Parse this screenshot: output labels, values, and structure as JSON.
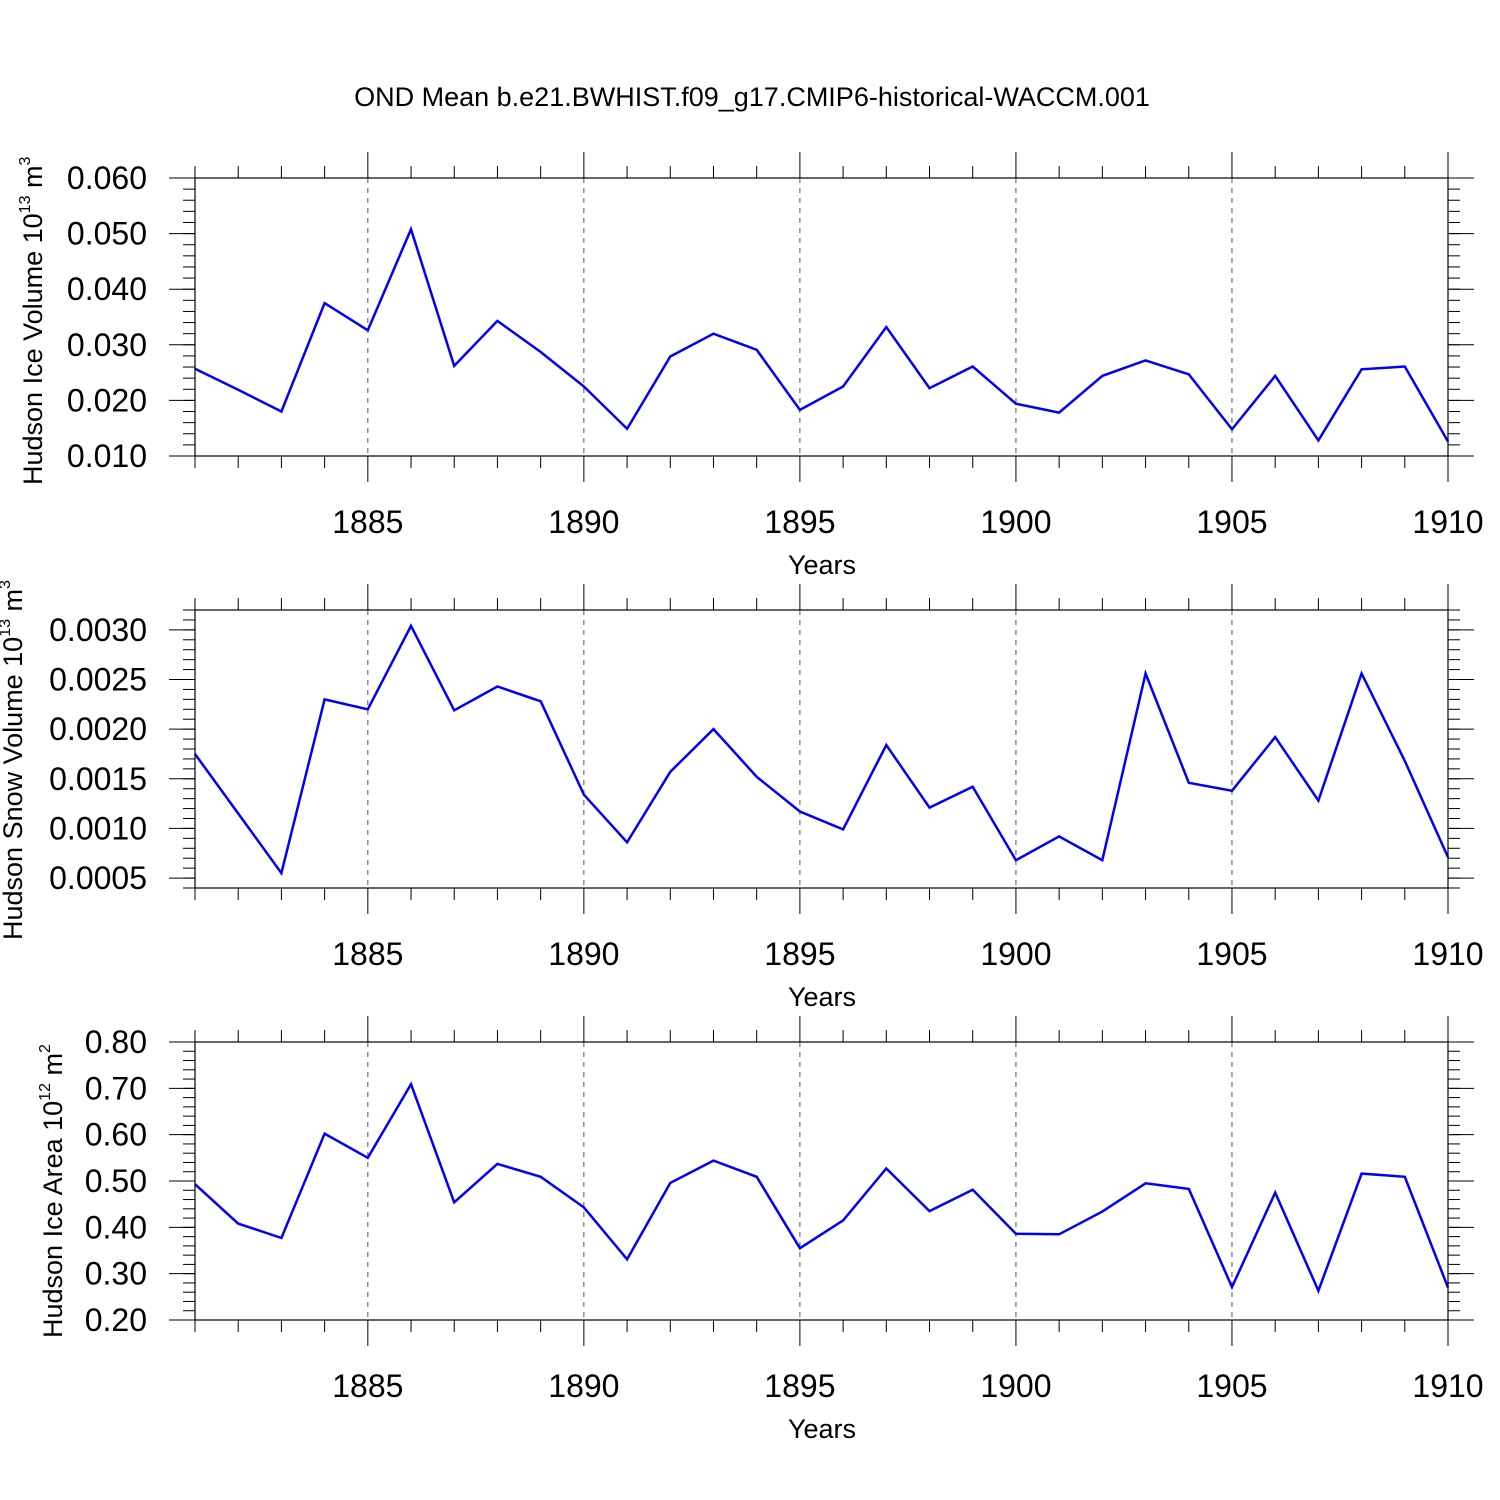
{
  "figure_title": "OND Mean b.e21.BWHIST.f09_g17.CMIP6-historical-WACCM.001",
  "colors": {
    "line": "#0000ff",
    "axes": "#000000",
    "grid": "#555555",
    "background": "#ffffff"
  },
  "chart_data": [
    {
      "type": "line",
      "xlabel": "Years",
      "ylabel": {
        "text": "Hudson Ice Volume 10",
        "sup": "13",
        "unit": " m",
        "unit_sup": "3"
      },
      "xlim": [
        1881,
        1910
      ],
      "ylim": [
        0.01,
        0.06
      ],
      "x_ticks": [
        1885,
        1890,
        1895,
        1900,
        1905,
        1910
      ],
      "y_ticks": [
        "0.010",
        "0.020",
        "0.030",
        "0.040",
        "0.050",
        "0.060"
      ],
      "grid": "vertical dashed at major x ticks",
      "x": [
        1881,
        1882,
        1883,
        1884,
        1885,
        1886,
        1887,
        1888,
        1889,
        1890,
        1891,
        1892,
        1893,
        1894,
        1895,
        1896,
        1897,
        1898,
        1899,
        1900,
        1901,
        1902,
        1903,
        1904,
        1905,
        1906,
        1907,
        1908,
        1909,
        1910
      ],
      "series": [
        {
          "values": [
            0.0257,
            0.0219,
            0.018,
            0.0375,
            0.0326,
            0.0508,
            0.0262,
            0.0343,
            0.0287,
            0.0225,
            0.0149,
            0.0279,
            0.032,
            0.0291,
            0.0183,
            0.0225,
            0.0332,
            0.0222,
            0.0261,
            0.0194,
            0.0178,
            0.0244,
            0.0272,
            0.0247,
            0.0148,
            0.0244,
            0.0128,
            0.0256,
            0.0261,
            0.0126
          ]
        }
      ]
    },
    {
      "type": "line",
      "xlabel": "Years",
      "ylabel": {
        "text": "Hudson Snow Volume 10",
        "sup": "13",
        "unit": " m",
        "unit_sup": "3"
      },
      "xlim": [
        1881,
        1910
      ],
      "ylim": [
        0.0004,
        0.0032
      ],
      "x_ticks": [
        1885,
        1890,
        1895,
        1900,
        1905,
        1910
      ],
      "y_ticks": [
        "0.0005",
        "0.0010",
        "0.0015",
        "0.0020",
        "0.0025",
        "0.0030"
      ],
      "grid": "vertical dashed at major x ticks",
      "x": [
        1881,
        1882,
        1883,
        1884,
        1885,
        1886,
        1887,
        1888,
        1889,
        1890,
        1891,
        1892,
        1893,
        1894,
        1895,
        1896,
        1897,
        1898,
        1899,
        1900,
        1901,
        1902,
        1903,
        1904,
        1905,
        1906,
        1907,
        1908,
        1909,
        1910
      ],
      "series": [
        {
          "values": [
            0.00175,
            0.00115,
            0.00055,
            0.0023,
            0.0022,
            0.00304,
            0.00219,
            0.00243,
            0.00228,
            0.00134,
            0.00086,
            0.00157,
            0.002,
            0.00152,
            0.00117,
            0.00099,
            0.00184,
            0.00121,
            0.00142,
            0.00068,
            0.00092,
            0.00068,
            0.00256,
            0.00146,
            0.00138,
            0.00192,
            0.00128,
            0.00256,
            0.00168,
            0.00071
          ]
        }
      ]
    },
    {
      "type": "line",
      "xlabel": "Years",
      "ylabel": {
        "text": "Hudson Ice Area 10",
        "sup": "12",
        "unit": " m",
        "unit_sup": "2"
      },
      "xlim": [
        1881,
        1910
      ],
      "ylim": [
        0.2,
        0.8
      ],
      "x_ticks": [
        1885,
        1890,
        1895,
        1900,
        1905,
        1910
      ],
      "y_ticks": [
        "0.20",
        "0.30",
        "0.40",
        "0.50",
        "0.60",
        "0.70",
        "0.80"
      ],
      "grid": "vertical dashed at major x ticks",
      "x": [
        1881,
        1882,
        1883,
        1884,
        1885,
        1886,
        1887,
        1888,
        1889,
        1890,
        1891,
        1892,
        1893,
        1894,
        1895,
        1896,
        1897,
        1898,
        1899,
        1900,
        1901,
        1902,
        1903,
        1904,
        1905,
        1906,
        1907,
        1908,
        1909,
        1910
      ],
      "series": [
        {
          "values": [
            0.493,
            0.408,
            0.377,
            0.602,
            0.55,
            0.709,
            0.454,
            0.537,
            0.509,
            0.443,
            0.331,
            0.496,
            0.544,
            0.509,
            0.355,
            0.415,
            0.527,
            0.435,
            0.481,
            0.386,
            0.385,
            0.434,
            0.495,
            0.483,
            0.271,
            0.475,
            0.263,
            0.516,
            0.509,
            0.27
          ]
        }
      ]
    }
  ]
}
